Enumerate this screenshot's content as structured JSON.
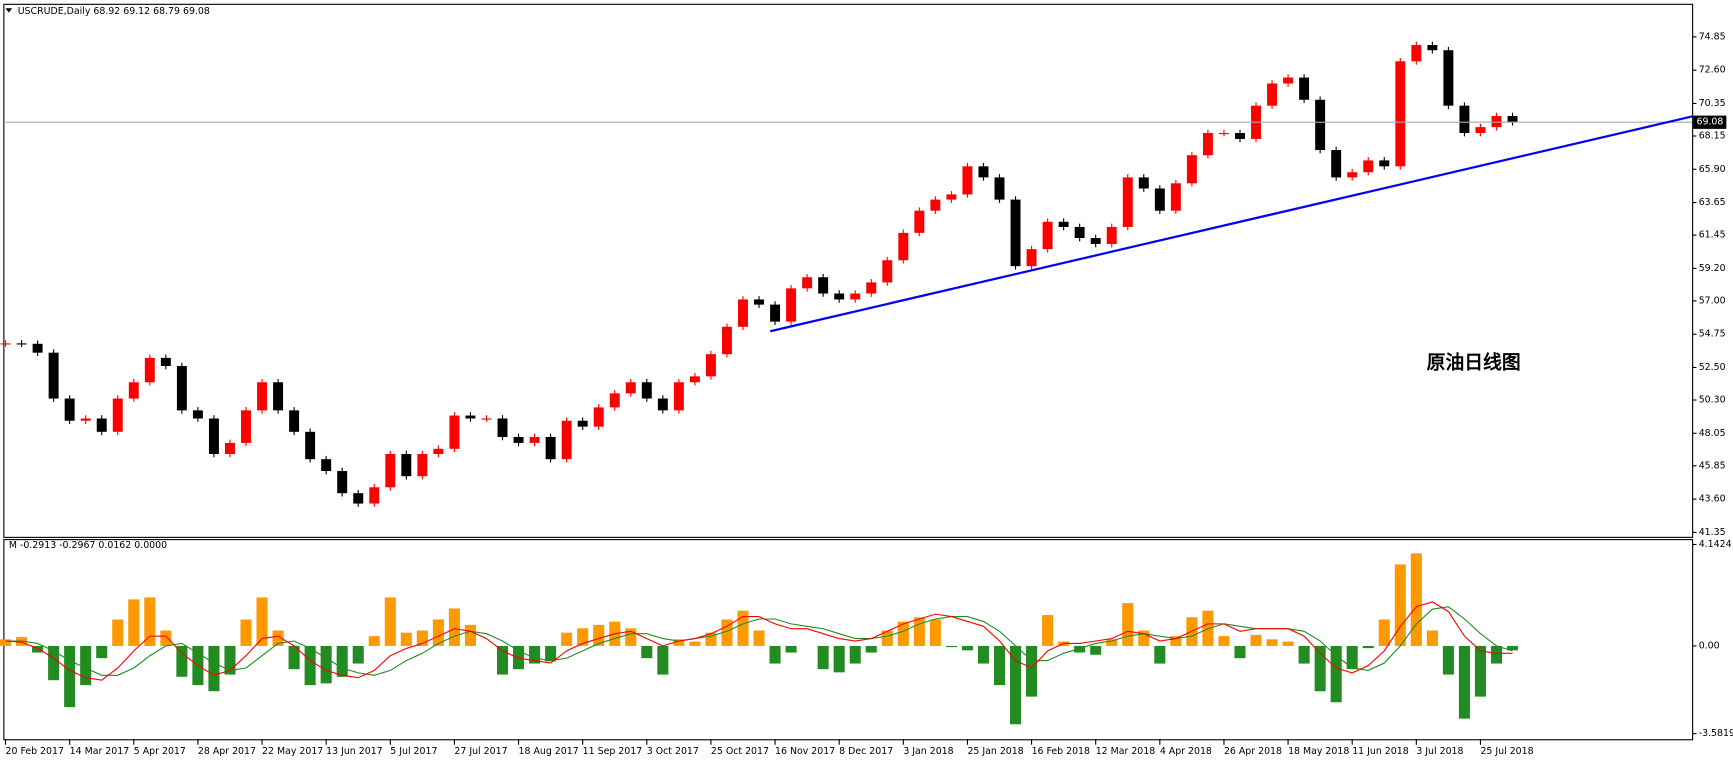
{
  "chart_data": [
    {
      "type": "candlestick",
      "title": "USCRUDE,Daily 68.92 69.12 68.79 69.08",
      "values": [
        54.13,
        54.1,
        53.5,
        50.4,
        48.9,
        49.05,
        48.15,
        50.4,
        51.5,
        53.15,
        52.6,
        49.6,
        49.05,
        46.65,
        47.4,
        49.6,
        51.5,
        49.6,
        48.15,
        46.3,
        45.5,
        44.0,
        43.3,
        44.4,
        46.65,
        45.15,
        46.65,
        47.0,
        49.25,
        49.05,
        49.05,
        47.8,
        47.4,
        47.8,
        46.3,
        48.9,
        48.5,
        49.8,
        50.75,
        51.5,
        50.4,
        49.6,
        51.5,
        51.9,
        53.4,
        55.25,
        57.1,
        56.75,
        55.6,
        57.85,
        58.6,
        57.5,
        57.1,
        57.5,
        58.25,
        59.75,
        61.6,
        63.1,
        63.85,
        64.2,
        66.1,
        65.35,
        63.85,
        59.35,
        60.5,
        62.35,
        62.0,
        61.25,
        60.85,
        62.0,
        65.35,
        64.6,
        63.1,
        64.95,
        66.85,
        68.35,
        68.35,
        67.95,
        70.2,
        71.7,
        72.1,
        70.6,
        67.2,
        65.35,
        65.7,
        66.5,
        66.1,
        73.2,
        74.3,
        73.95,
        70.2,
        68.35,
        68.75,
        69.5,
        69.08
      ],
      "up_color": "#ff0000",
      "down_color": "#000000",
      "xlim": [
        0,
        105.2
      ],
      "ylim": [
        41.05,
        76.94
      ],
      "yticks": [
        74.85,
        {
          "value": 72.6,
          "label": "72.60"
        },
        70.35,
        68.15,
        {
          "value": 65.9,
          "label": "65.90"
        },
        63.65,
        61.45,
        {
          "value": 59.2,
          "label": "59.20"
        },
        {
          "value": 57,
          "label": "57.00"
        },
        54.75,
        {
          "value": 52.5,
          "label": "52.50"
        },
        {
          "value": 50.3,
          "label": "50.30"
        },
        48.05,
        45.85,
        {
          "value": 43.6,
          "label": "43.60"
        },
        41.35
      ],
      "current_price": 69.08,
      "trendline": {
        "x": [
          47.7,
          105.2
        ],
        "y": [
          54.95,
          69.47
        ],
        "color": "#0000ff"
      },
      "annotation": "原油日线图",
      "annotation_color": "#ff0000"
    },
    {
      "type": "macd",
      "title": "M -0.2913 -0.2967 0.0162 0.0000",
      "histogram": {
        "values": [
          0.27,
          0.36,
          -0.27,
          -1.4,
          -2.5,
          -1.6,
          -0.5,
          1.08,
          1.9,
          1.98,
          0.63,
          -1.26,
          -1.6,
          -1.85,
          -1.17,
          1.08,
          1.98,
          0.63,
          -0.95,
          -1.6,
          -1.53,
          -1.26,
          -0.72,
          0.4,
          1.98,
          0.54,
          0.63,
          1.08,
          1.53,
          0.86,
          0,
          -1.17,
          -0.95,
          -0.72,
          -0.63,
          0.54,
          0.72,
          0.86,
          0.99,
          0.72,
          -0.5,
          -1.17,
          0.27,
          0.18,
          0.54,
          1.08,
          1.44,
          0.63,
          -0.72,
          -0.27,
          0,
          -0.95,
          -1.08,
          -0.72,
          -0.27,
          0.63,
          0.99,
          1.17,
          1.08,
          -0.05,
          -0.18,
          -0.72,
          -1.6,
          -3.2,
          -2.07,
          1.26,
          0.18,
          -0.27,
          -0.36,
          0.27,
          1.75,
          0.63,
          -0.72,
          0.4,
          1.17,
          1.44,
          0.4,
          -0.5,
          0.45,
          0.27,
          0.18,
          -0.72,
          -1.85,
          -2.3,
          -0.95,
          -0.09,
          1.08,
          3.33,
          3.78,
          0.63,
          -1.17,
          -2.97,
          -2.07,
          -0.72,
          -0.18
        ],
        "pos_color": "#ff9900",
        "neg_color": "#228b22"
      },
      "main": {
        "values": [
          0.2,
          0.15,
          -0.1,
          -0.5,
          -1.0,
          -1.3,
          -1.4,
          -0.9,
          -0.2,
          0.4,
          0.4,
          -0.3,
          -0.8,
          -1.2,
          -1.0,
          -0.4,
          0.3,
          0.4,
          0.0,
          -0.6,
          -1.0,
          -1.2,
          -1.3,
          -1.0,
          -0.4,
          -0.1,
          0.1,
          0.4,
          0.7,
          0.6,
          0.3,
          -0.2,
          -0.5,
          -0.6,
          -0.7,
          -0.2,
          0.1,
          0.3,
          0.5,
          0.6,
          0.3,
          0.0,
          0.2,
          0.3,
          0.5,
          0.8,
          1.2,
          1.2,
          0.9,
          0.7,
          0.7,
          0.5,
          0.3,
          0.2,
          0.3,
          0.6,
          0.9,
          1.1,
          1.3,
          1.2,
          1.0,
          0.8,
          0.2,
          -0.6,
          -0.9,
          -0.2,
          0.1,
          0.1,
          0.2,
          0.3,
          0.6,
          0.5,
          0.2,
          0.3,
          0.6,
          0.9,
          0.9,
          0.6,
          0.7,
          0.7,
          0.7,
          0.4,
          -0.3,
          -0.9,
          -1.1,
          -0.8,
          -0.2,
          0.8,
          1.6,
          1.8,
          1.4,
          0.4,
          -0.2,
          -0.3,
          -0.3
        ],
        "color": "#ff0000"
      },
      "signal": {
        "values": [
          0.2,
          0.2,
          0.1,
          -0.2,
          -0.6,
          -0.9,
          -1.2,
          -1.2,
          -0.9,
          -0.4,
          0.0,
          0.1,
          -0.3,
          -0.7,
          -1.0,
          -0.9,
          -0.4,
          0.1,
          0.2,
          -0.1,
          -0.5,
          -0.9,
          -1.1,
          -1.2,
          -1.0,
          -0.6,
          -0.3,
          0.1,
          0.4,
          0.6,
          0.5,
          0.2,
          -0.2,
          -0.5,
          -0.6,
          -0.5,
          -0.2,
          0.1,
          0.3,
          0.5,
          0.5,
          0.3,
          0.2,
          0.3,
          0.4,
          0.6,
          0.9,
          1.1,
          1.1,
          0.9,
          0.8,
          0.7,
          0.5,
          0.3,
          0.3,
          0.4,
          0.6,
          0.9,
          1.1,
          1.2,
          1.2,
          1.0,
          0.6,
          0.0,
          -0.6,
          -0.6,
          -0.3,
          -0.1,
          0.1,
          0.2,
          0.4,
          0.5,
          0.4,
          0.3,
          0.4,
          0.7,
          0.9,
          0.8,
          0.7,
          0.7,
          0.7,
          0.6,
          0.2,
          -0.4,
          -0.9,
          -1.0,
          -0.7,
          0.0,
          0.9,
          1.5,
          1.6,
          1.1,
          0.5,
          0.0,
          -0.2
        ],
        "color": "#228b22"
      },
      "xlim": [
        0,
        105.2
      ],
      "ylim": [
        -3.81,
        4.32
      ],
      "yticks": [
        4.1424,
        {
          "value": 0,
          "label": "0.00"
        },
        -3.5819
      ],
      "xticks": [
        {
          "value": 0,
          "label": "20 Feb 2017"
        },
        {
          "value": 4,
          "label": "14 Mar 2017"
        },
        {
          "value": 8,
          "label": "5 Apr 2017"
        },
        {
          "value": 12,
          "label": "28 Apr 2017"
        },
        {
          "value": 16,
          "label": "22 May 2017"
        },
        {
          "value": 20,
          "label": "13 Jun 2017"
        },
        {
          "value": 24,
          "label": "5 Jul 2017"
        },
        {
          "value": 28,
          "label": "27 Jul 2017"
        },
        {
          "value": 32,
          "label": "18 Aug 2017"
        },
        {
          "value": 36,
          "label": "11 Sep 2017"
        },
        {
          "value": 40,
          "label": "3 Oct 2017"
        },
        {
          "value": 44,
          "label": "25 Oct 2017"
        },
        {
          "value": 48,
          "label": "16 Nov 2017"
        },
        {
          "value": 52,
          "label": "8 Dec 2017"
        },
        {
          "value": 56,
          "label": "3 Jan 2018"
        },
        {
          "value": 60,
          "label": "25 Jan 2018"
        },
        {
          "value": 64,
          "label": "16 Feb 2018"
        },
        {
          "value": 68,
          "label": "12 Mar 2018"
        },
        {
          "value": 72,
          "label": "4 Apr 2018"
        },
        {
          "value": 76,
          "label": "26 Apr 2018"
        },
        {
          "value": 80,
          "label": "18 May 2018"
        },
        {
          "value": 84,
          "label": "11 Jun 2018"
        },
        {
          "value": 88,
          "label": "3 Jul 2018"
        },
        {
          "value": 92,
          "label": "25 Jul 2018"
        }
      ]
    }
  ]
}
